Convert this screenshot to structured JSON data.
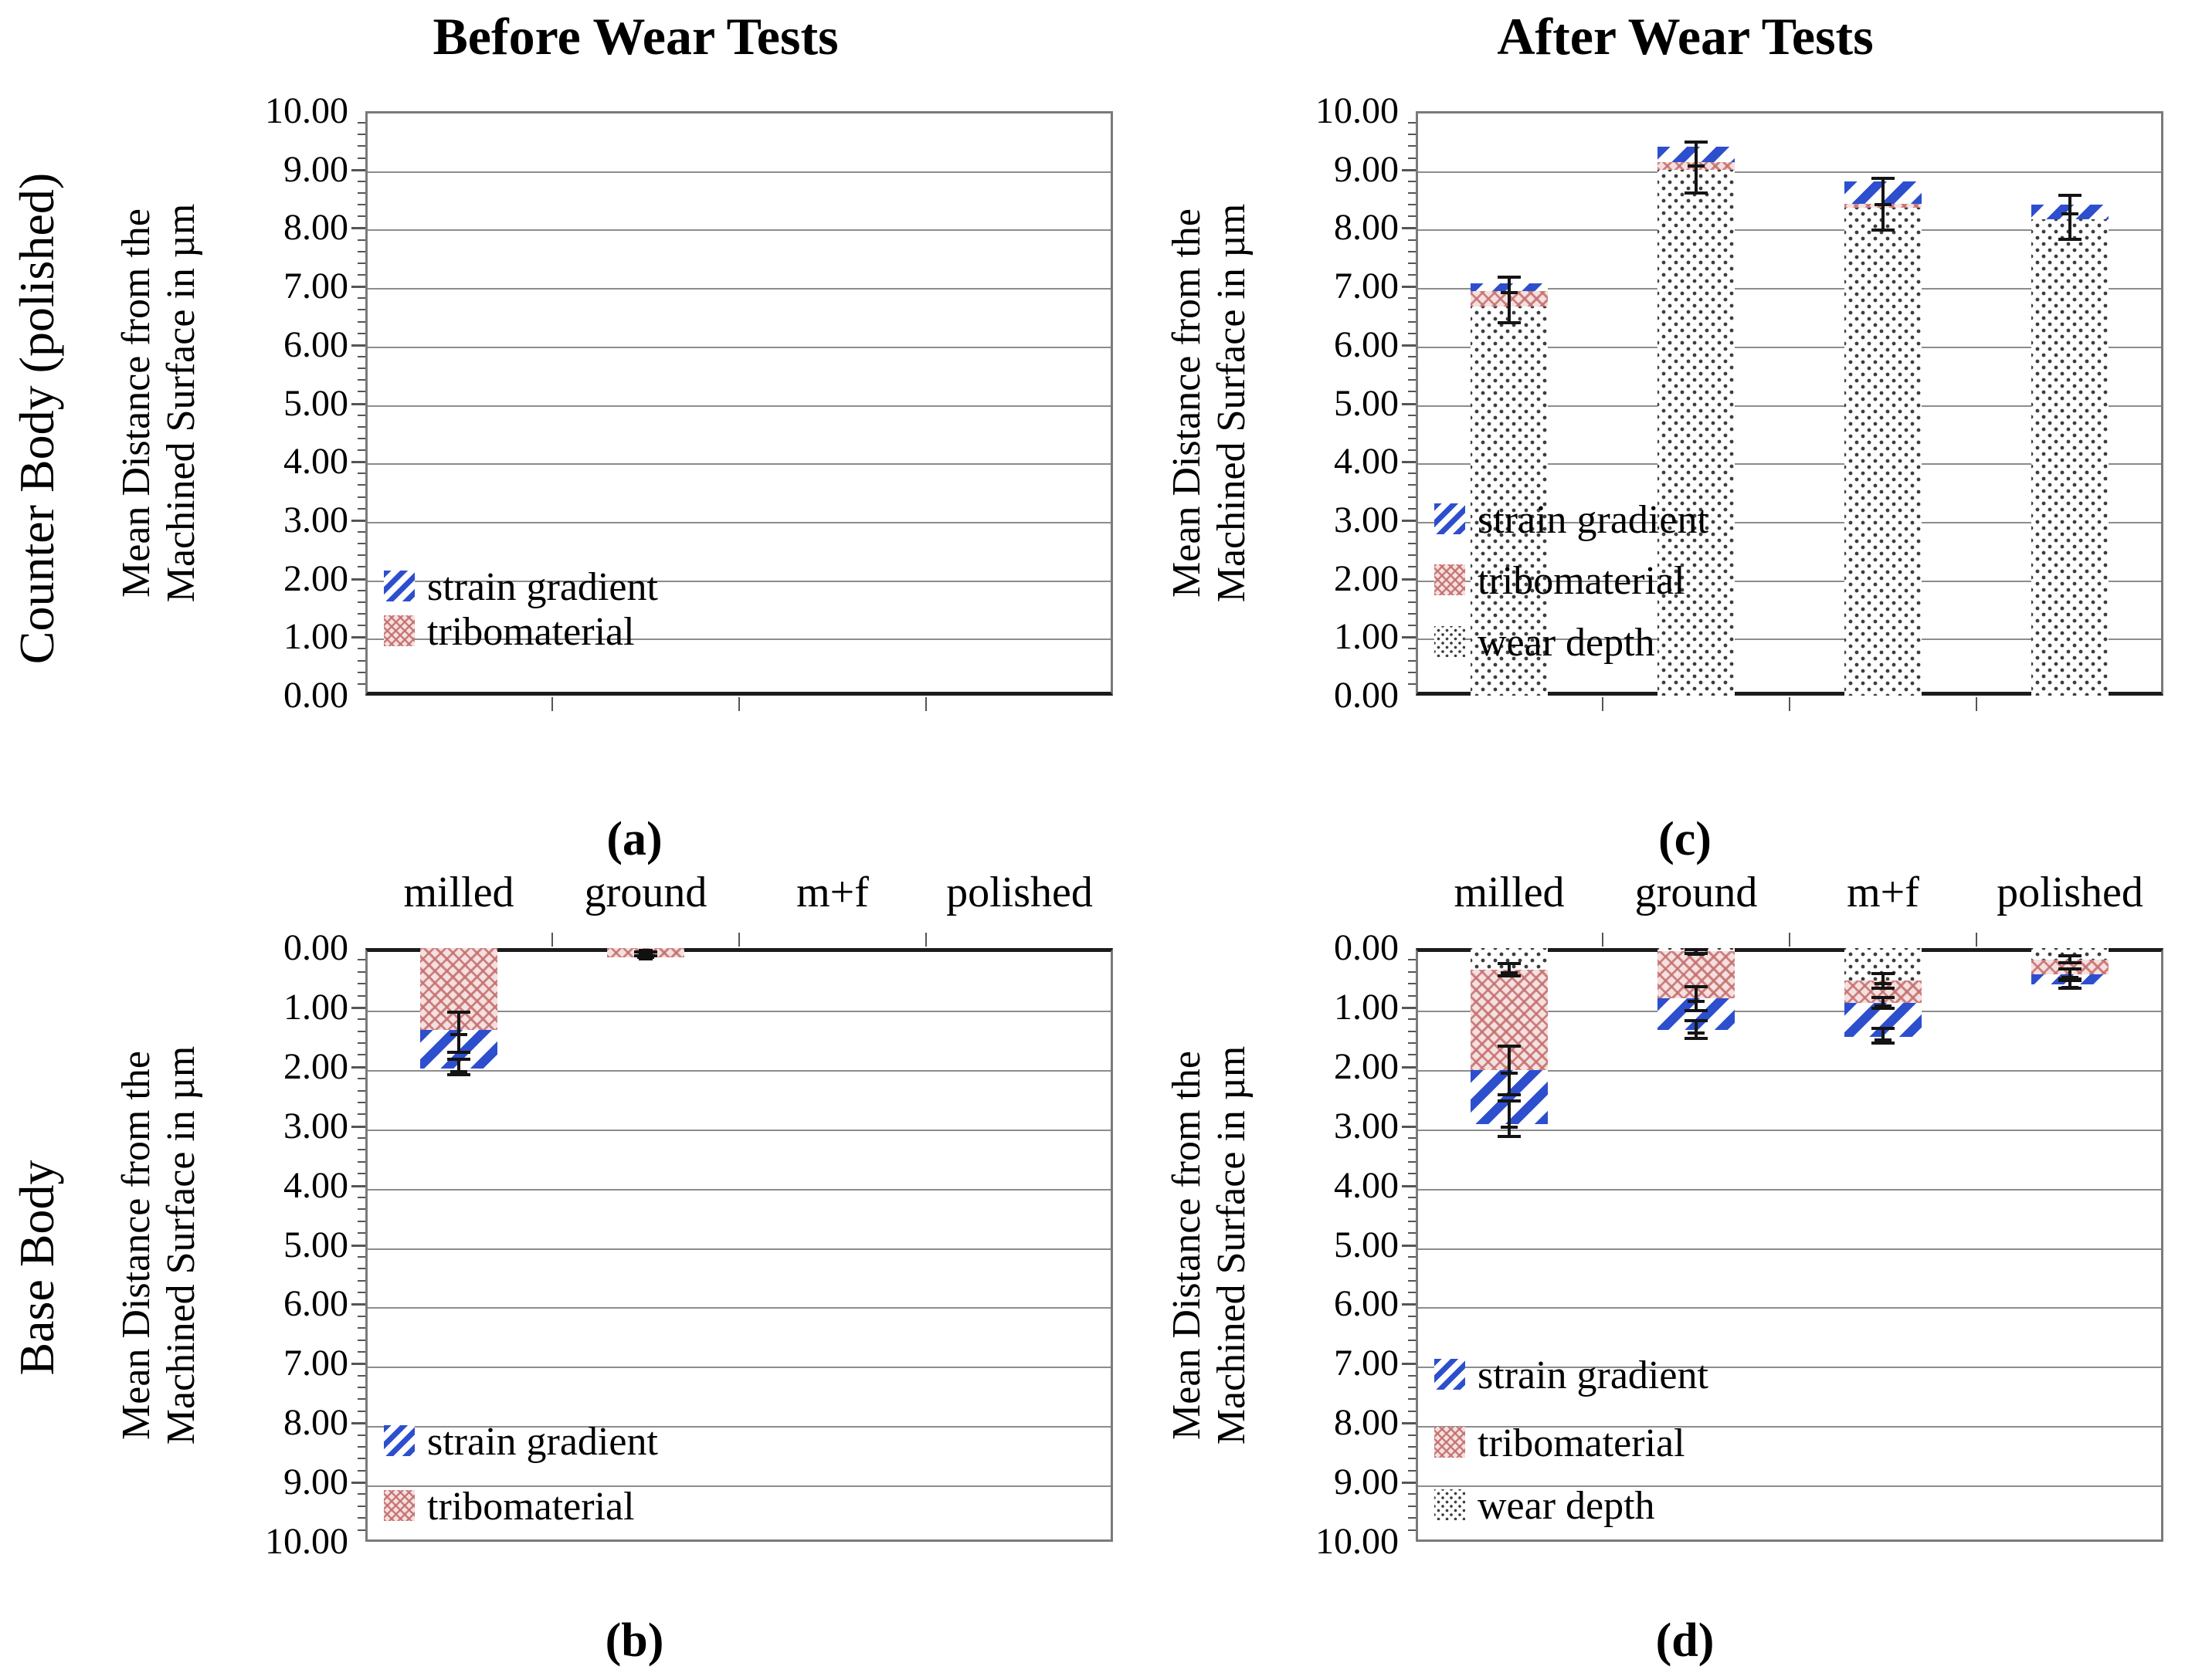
{
  "page": {
    "col_titles": {
      "left": "Before Wear Tests",
      "right": "After Wear Tests"
    },
    "row_labels": {
      "top": "Counter Body (polished)",
      "bottom": "Base Body"
    },
    "y_axis_title_line1": "Mean Distance from the",
    "y_axis_title_line2": "Machined Surface in µm"
  },
  "axis": {
    "min": 0,
    "max": 10,
    "tick_labels": [
      "0.00",
      "1.00",
      "2.00",
      "3.00",
      "4.00",
      "5.00",
      "6.00",
      "7.00",
      "8.00",
      "9.00",
      "10.00"
    ],
    "minor_step": 0.2,
    "grid": true
  },
  "categories": [
    "milled",
    "ground",
    "m+f",
    "polished"
  ],
  "legend_labels": {
    "strain": "strain gradient",
    "tribo": "tribomaterial",
    "wear": "wear depth"
  },
  "colors": {
    "strain_blue": "#2d4fce",
    "tribo_red": "#c4706e",
    "tribo_background": "#f5e0e0",
    "wear_dot": "#3c3c3c",
    "gridline": "#8c8c8c",
    "frame": "#7a7a7a",
    "dark_axis_edge": "#1c1c1c"
  },
  "chart_data": [
    {
      "id": "a",
      "caption": "(a)",
      "type": "bar",
      "position": "top-left",
      "title_column": "Before Wear Tests",
      "ylabel": "Mean Distance from the Machined Surface in µm",
      "ylim": [
        0,
        10
      ],
      "inverted_axis": false,
      "show_category_labels": false,
      "legend": [
        {
          "series": "strain",
          "at_value": 1.85
        },
        {
          "series": "tribo",
          "at_value": 1.08
        }
      ],
      "bars": [
        {
          "category": "milled",
          "segments": []
        },
        {
          "category": "ground",
          "segments": []
        },
        {
          "category": "m+f",
          "segments": []
        },
        {
          "category": "polished",
          "segments": []
        }
      ],
      "errors": []
    },
    {
      "id": "b",
      "caption": "(b)",
      "type": "bar",
      "position": "bottom-left",
      "title_column": "Before Wear Tests",
      "ylabel": "Mean Distance from the Machined Surface in µm",
      "ylim": [
        0,
        10
      ],
      "inverted_axis": true,
      "show_category_labels": true,
      "legend": [
        {
          "series": "strain",
          "at_value": 8.32
        },
        {
          "series": "tribo",
          "at_value": 9.42
        }
      ],
      "bars": [
        {
          "category": "milled",
          "segments": [
            {
              "series": "tribo",
              "size": 1.38
            },
            {
              "series": "strain",
              "size": 0.65
            }
          ]
        },
        {
          "category": "ground",
          "segments": [
            {
              "series": "tribo",
              "size": 0.15
            }
          ]
        },
        {
          "category": "m+f",
          "segments": []
        },
        {
          "category": "polished",
          "segments": []
        }
      ],
      "errors": [
        {
          "category": "milled",
          "center": 1.4,
          "lo": 1.05,
          "hi": 1.78
        },
        {
          "category": "milled",
          "center": 2.03,
          "lo": 1.85,
          "hi": 2.16
        },
        {
          "category": "ground",
          "center": 0.1,
          "lo": 0.04,
          "hi": 0.16,
          "marker": true
        }
      ]
    },
    {
      "id": "c",
      "caption": "(c)",
      "type": "bar",
      "position": "top-right",
      "title_column": "After Wear Tests",
      "ylabel": "Mean Distance from the Machined Surface in µm",
      "ylim": [
        0,
        10
      ],
      "inverted_axis": false,
      "show_category_labels": false,
      "legend": [
        {
          "series": "strain",
          "at_value": 3.0
        },
        {
          "series": "tribo",
          "at_value": 1.95
        },
        {
          "series": "wear",
          "at_value": 0.9
        }
      ],
      "bars": [
        {
          "category": "milled",
          "segments": [
            {
              "series": "wear",
              "size": 6.66
            },
            {
              "series": "tribo",
              "size": 0.26
            },
            {
              "series": "strain",
              "size": 0.14
            }
          ]
        },
        {
          "category": "ground",
          "segments": [
            {
              "series": "wear",
              "size": 9.0
            },
            {
              "series": "tribo",
              "size": 0.13
            },
            {
              "series": "strain",
              "size": 0.26
            }
          ]
        },
        {
          "category": "m+f",
          "segments": [
            {
              "series": "wear",
              "size": 8.35
            },
            {
              "series": "tribo",
              "size": 0.06
            },
            {
              "series": "strain",
              "size": 0.39
            }
          ]
        },
        {
          "category": "polished",
          "segments": [
            {
              "series": "wear",
              "size": 8.15
            },
            {
              "series": "strain",
              "size": 0.25
            }
          ]
        }
      ],
      "errors": [
        {
          "category": "milled",
          "center": 6.95,
          "lo": 6.35,
          "hi": 7.18
        },
        {
          "category": "ground",
          "center": 9.12,
          "lo": 8.57,
          "hi": 9.5
        },
        {
          "category": "m+f",
          "center": 8.45,
          "lo": 7.94,
          "hi": 8.88
        },
        {
          "category": "polished",
          "center": 8.3,
          "lo": 7.78,
          "hi": 8.59
        }
      ]
    },
    {
      "id": "d",
      "caption": "(d)",
      "type": "bar",
      "position": "bottom-right",
      "title_column": "After Wear Tests",
      "ylabel": "Mean Distance from the Machined Surface in µm",
      "ylim": [
        0,
        10
      ],
      "inverted_axis": true,
      "show_category_labels": true,
      "legend": [
        {
          "series": "strain",
          "at_value": 7.2
        },
        {
          "series": "tribo",
          "at_value": 8.35
        },
        {
          "series": "wear",
          "at_value": 9.4
        }
      ],
      "bars": [
        {
          "category": "milled",
          "segments": [
            {
              "series": "wear",
              "size": 0.37
            },
            {
              "series": "tribo",
              "size": 1.69
            },
            {
              "series": "strain",
              "size": 0.91
            }
          ]
        },
        {
          "category": "ground",
          "segments": [
            {
              "series": "wear",
              "size": 0.05
            },
            {
              "series": "tribo",
              "size": 0.8
            },
            {
              "series": "strain",
              "size": 0.53
            }
          ]
        },
        {
          "category": "m+f",
          "segments": [
            {
              "series": "wear",
              "size": 0.55
            },
            {
              "series": "tribo",
              "size": 0.37
            },
            {
              "series": "strain",
              "size": 0.57
            }
          ]
        },
        {
          "category": "polished",
          "segments": [
            {
              "series": "wear",
              "size": 0.19
            },
            {
              "series": "tribo",
              "size": 0.25
            },
            {
              "series": "strain",
              "size": 0.17
            }
          ]
        }
      ],
      "errors": [
        {
          "category": "milled",
          "center": 0.37,
          "lo": 0.24,
          "hi": 0.5
        },
        {
          "category": "milled",
          "center": 2.06,
          "lo": 1.62,
          "hi": 2.5
        },
        {
          "category": "milled",
          "center": 2.97,
          "lo": 2.55,
          "hi": 3.2
        },
        {
          "category": "ground",
          "center": 0.05,
          "lo": 0.0,
          "hi": 0.12
        },
        {
          "category": "ground",
          "center": 0.85,
          "lo": 0.63,
          "hi": 1.08
        },
        {
          "category": "ground",
          "center": 1.38,
          "lo": 1.2,
          "hi": 1.55
        },
        {
          "category": "m+f",
          "center": 0.55,
          "lo": 0.4,
          "hi": 0.7
        },
        {
          "category": "m+f",
          "center": 0.92,
          "lo": 0.8,
          "hi": 1.04
        },
        {
          "category": "m+f",
          "center": 1.49,
          "lo": 1.33,
          "hi": 1.62
        },
        {
          "category": "polished",
          "center": 0.19,
          "lo": 0.11,
          "hi": 0.27
        },
        {
          "category": "polished",
          "center": 0.44,
          "lo": 0.33,
          "hi": 0.55
        },
        {
          "category": "polished",
          "center": 0.61,
          "lo": 0.52,
          "hi": 0.7
        }
      ]
    }
  ]
}
